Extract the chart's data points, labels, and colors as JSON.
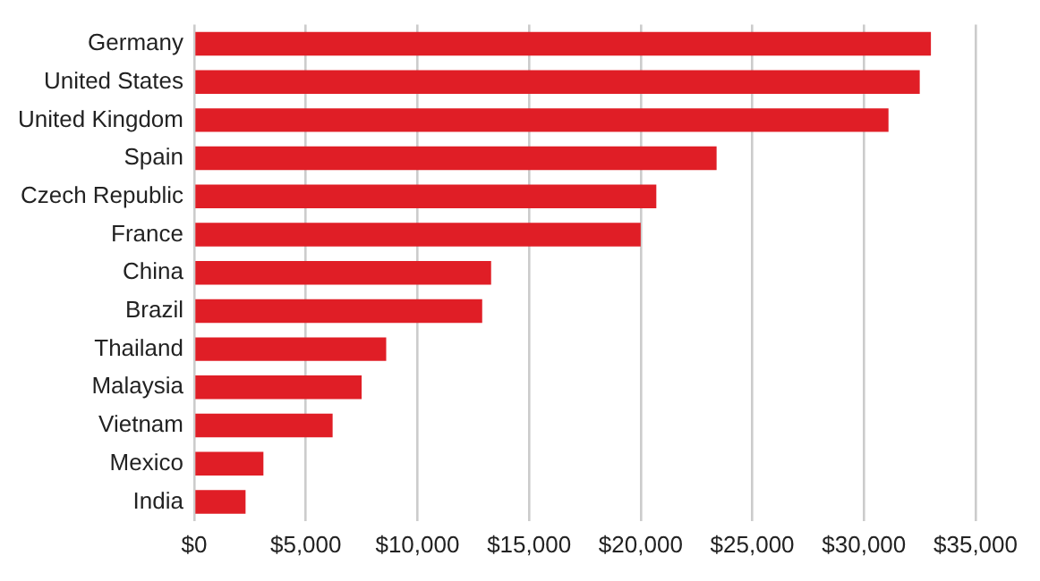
{
  "chart_data": {
    "type": "bar",
    "orientation": "horizontal",
    "categories": [
      "Germany",
      "United States",
      "United Kingdom",
      "Spain",
      "Czech Republic",
      "France",
      "China",
      "Brazil",
      "Thailand",
      "Malaysia",
      "Vietnam",
      "Mexico",
      "India"
    ],
    "values": [
      33000,
      32500,
      31100,
      23400,
      20700,
      20000,
      13300,
      12900,
      8600,
      7500,
      6200,
      3100,
      2300
    ],
    "color": "#e01e26",
    "xlim": [
      0,
      35000
    ],
    "xticks": [
      {
        "value": 0,
        "label": "$0"
      },
      {
        "value": 5000,
        "label": "$5,000"
      },
      {
        "value": 10000,
        "label": "$10,000"
      },
      {
        "value": 15000,
        "label": "$15,000"
      },
      {
        "value": 20000,
        "label": "$20,000"
      },
      {
        "value": 25000,
        "label": "$25,000"
      },
      {
        "value": 30000,
        "label": "$30,000"
      },
      {
        "value": 35000,
        "label": "$35,000"
      }
    ],
    "grid": "x",
    "legend": false
  }
}
